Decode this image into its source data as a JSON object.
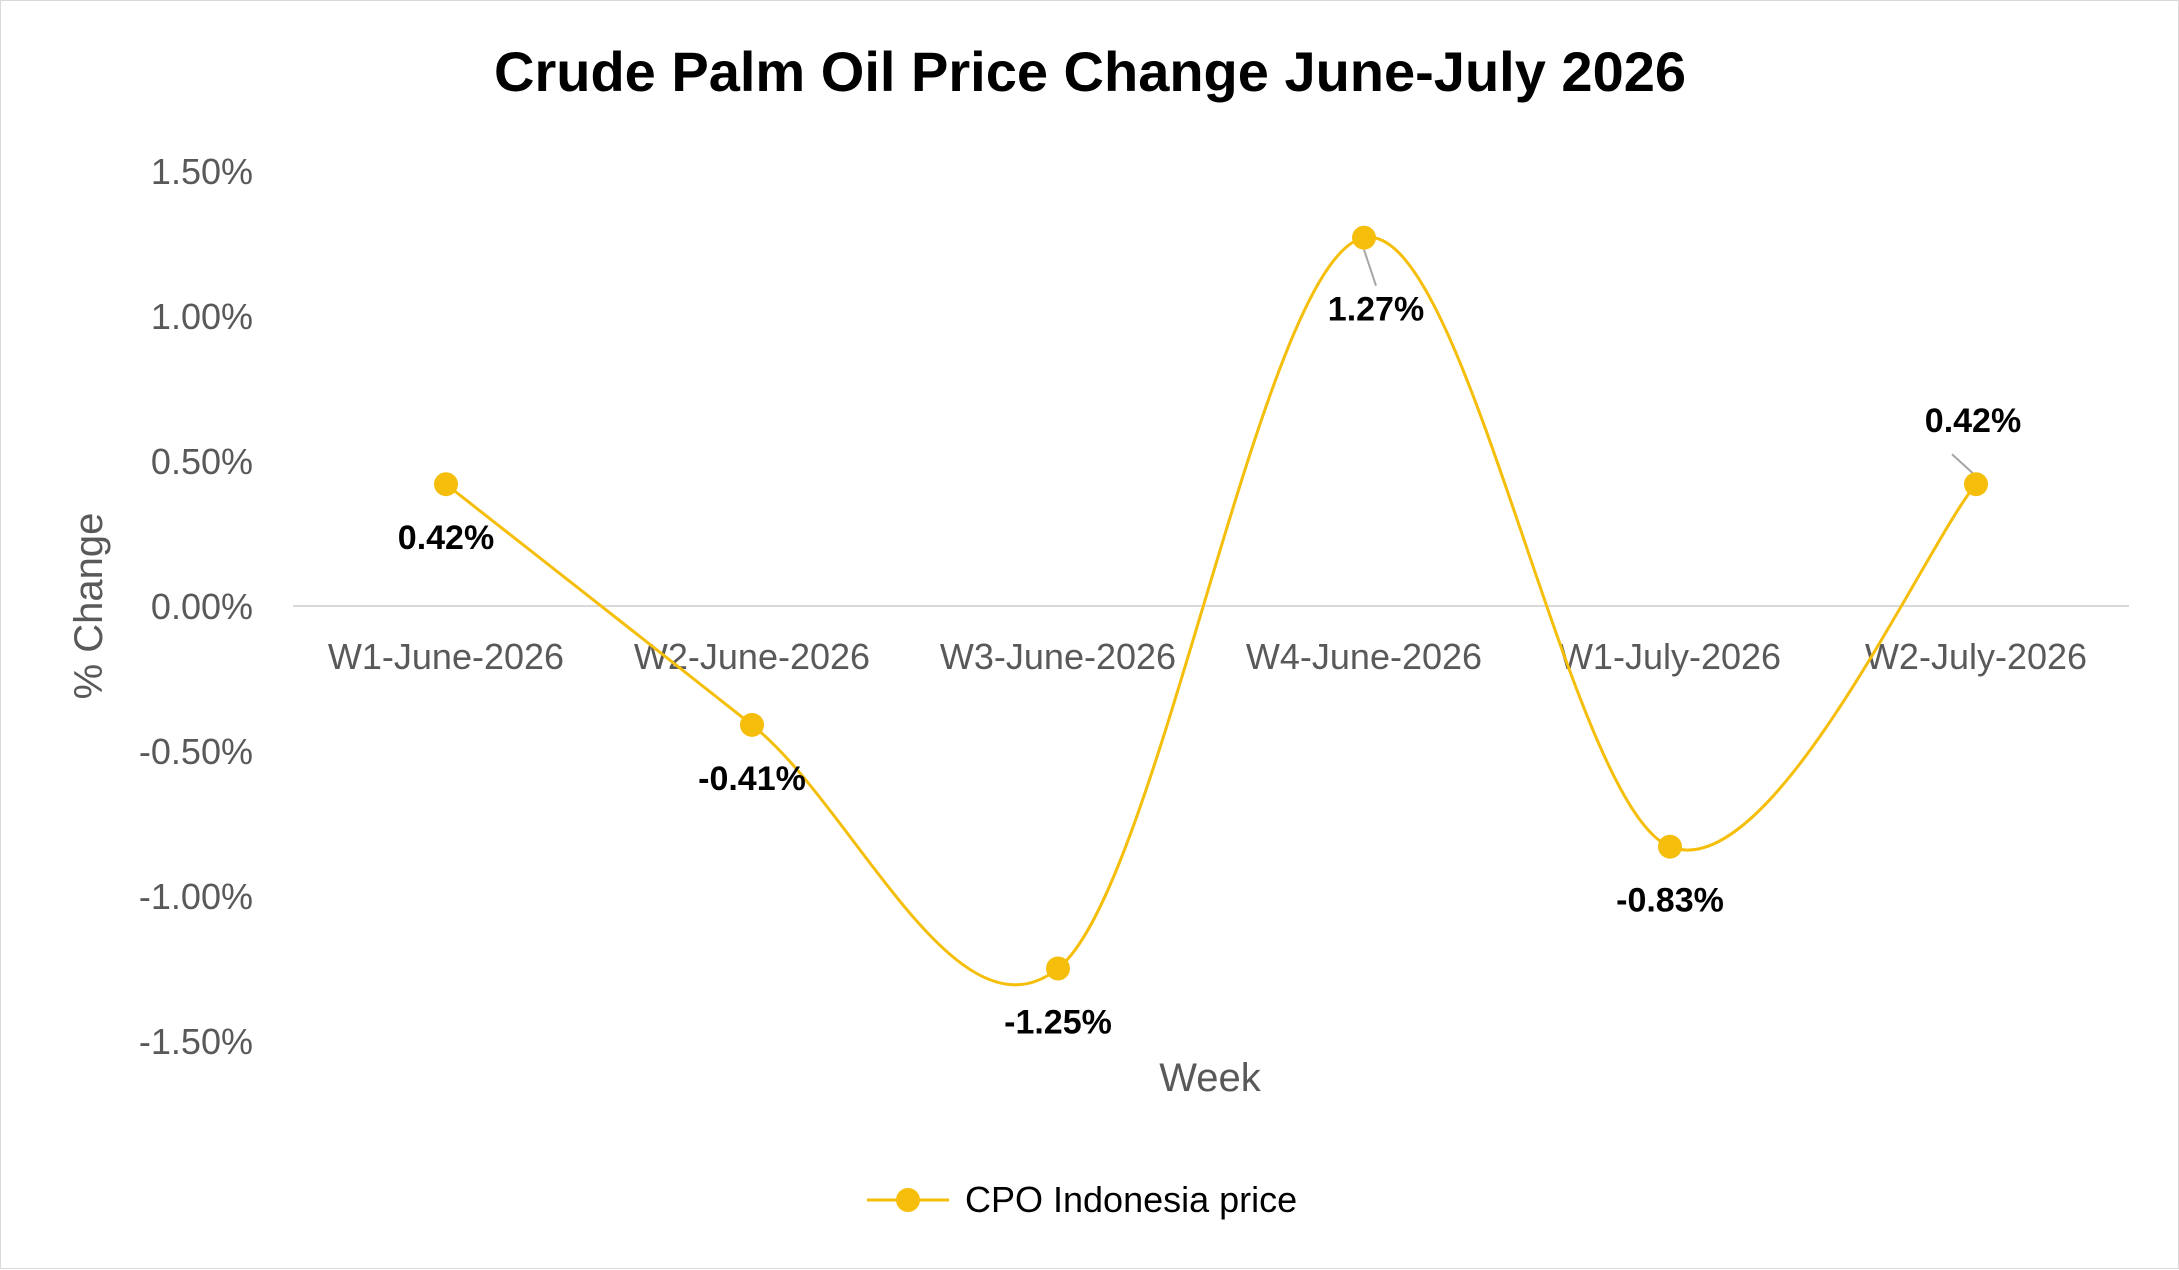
{
  "chart_data": {
    "type": "line",
    "title": "Crude Palm Oil Price Change June-July 2026",
    "xlabel": "Week",
    "ylabel": "% Change",
    "categories": [
      "W1-June-2026",
      "W2-June-2026",
      "W3-June-2026",
      "W4-June-2026",
      "W1-July-2026",
      "W2-July-2026"
    ],
    "series": [
      {
        "name": "CPO Indonesia price",
        "values": [
          0.42,
          -0.41,
          -1.25,
          1.27,
          -0.83,
          0.42
        ],
        "labels": [
          "0.42%",
          "-0.41%",
          "-1.25%",
          "1.27%",
          "-0.83%",
          "0.42%"
        ],
        "color": "#F5BE0B",
        "smooth": true
      }
    ],
    "ylim": [
      -1.5,
      1.5
    ],
    "yticks": [
      1.5,
      1.0,
      0.5,
      0.0,
      -0.5,
      -1.0,
      -1.5
    ],
    "ytick_labels": [
      "1.50%",
      "1.00%",
      "0.50%",
      "0.00%",
      "-0.50%",
      "-1.00%",
      "-1.50%"
    ],
    "grid": false,
    "zero_line_color": "#d9d9d9",
    "legend_position": "bottom"
  }
}
